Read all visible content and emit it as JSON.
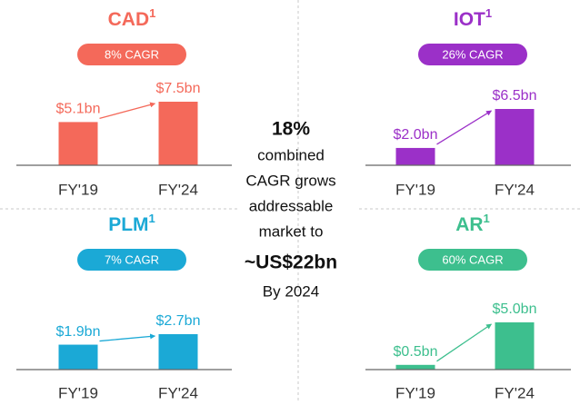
{
  "chart_data": [
    {
      "type": "bar",
      "title": "CAD",
      "title_note": "1",
      "subtitle": "8% CAGR",
      "categories": [
        "FY'19",
        "FY'24"
      ],
      "values": [
        5.1,
        7.5
      ],
      "value_labels": [
        "$5.1bn",
        "$7.5bn"
      ],
      "color": "#f4695a"
    },
    {
      "type": "bar",
      "title": "IOT",
      "title_note": "1",
      "subtitle": "26% CAGR",
      "categories": [
        "FY'19",
        "FY'24"
      ],
      "values": [
        2.0,
        6.5
      ],
      "value_labels": [
        "$2.0bn",
        "$6.5bn"
      ],
      "color": "#9b30c8"
    },
    {
      "type": "bar",
      "title": "PLM",
      "title_note": "1",
      "subtitle": "7% CAGR",
      "categories": [
        "FY'19",
        "FY'24"
      ],
      "values": [
        1.9,
        2.7
      ],
      "value_labels": [
        "$1.9bn",
        "$2.7bn"
      ],
      "color": "#1ba9d6"
    },
    {
      "type": "bar",
      "title": "AR",
      "title_note": "1",
      "subtitle": "60% CAGR",
      "categories": [
        "FY'19",
        "FY'24"
      ],
      "values": [
        0.5,
        5.0
      ],
      "value_labels": [
        "$0.5bn",
        "$5.0bn"
      ],
      "color": "#3dbf8e"
    }
  ],
  "center_text": [
    {
      "text": "18%",
      "bold": true
    },
    {
      "text": "combined",
      "bold": false
    },
    {
      "text": "CAGR grows",
      "bold": false
    },
    {
      "text": "addressable",
      "bold": false
    },
    {
      "text": "market to",
      "bold": false
    },
    {
      "text": "~US$22bn",
      "bold": true
    },
    {
      "text": "By 2024",
      "bold": false
    }
  ]
}
